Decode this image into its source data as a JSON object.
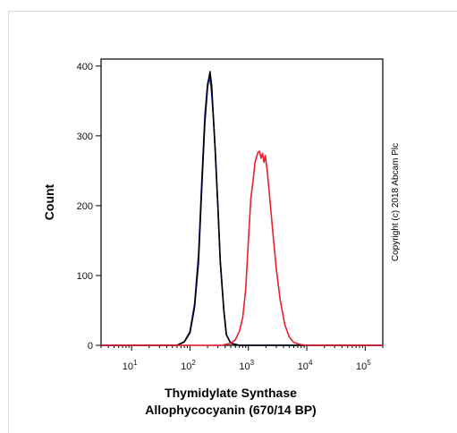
{
  "chart_data": {
    "type": "line",
    "xlabel_lines": [
      "Thymidylate Synthase",
      "Allophycocyanin (670/14 BP)"
    ],
    "ylabel": "Count",
    "xscale": "log",
    "xlim": [
      3,
      200000
    ],
    "ylim": [
      0,
      410
    ],
    "x_ticks": [
      {
        "value": 10,
        "base": "10",
        "exp": "1"
      },
      {
        "value": 100,
        "base": "10",
        "exp": "2"
      },
      {
        "value": 1000,
        "base": "10",
        "exp": "3"
      },
      {
        "value": 10000,
        "base": "10",
        "exp": "4"
      },
      {
        "value": 100000,
        "base": "10",
        "exp": "5"
      }
    ],
    "y_ticks": [
      0,
      100,
      200,
      300,
      400
    ],
    "grid": false,
    "annotation": "Copyright (c) 2018 Abcam Plc",
    "series": [
      {
        "color": "#1f2fb8",
        "x": [
          3,
          60,
          80,
          100,
          120,
          140,
          160,
          180,
          200,
          215,
          230,
          250,
          270,
          300,
          330,
          380,
          420,
          500,
          700,
          200000
        ],
        "y": [
          0,
          0,
          5,
          20,
          60,
          130,
          240,
          330,
          375,
          385,
          370,
          330,
          280,
          200,
          120,
          50,
          15,
          3,
          0,
          0
        ]
      },
      {
        "color": "#000000",
        "x": [
          3,
          60,
          80,
          100,
          120,
          140,
          160,
          180,
          200,
          220,
          235,
          250,
          270,
          300,
          330,
          380,
          420,
          500,
          700,
          200000
        ],
        "y": [
          0,
          0,
          5,
          18,
          55,
          120,
          230,
          320,
          370,
          392,
          372,
          330,
          280,
          200,
          120,
          50,
          15,
          3,
          0,
          0
        ]
      },
      {
        "color": "#e8202a",
        "x": [
          3,
          350,
          500,
          600,
          700,
          800,
          900,
          1000,
          1100,
          1200,
          1300,
          1450,
          1550,
          1650,
          1750,
          1850,
          1950,
          2100,
          2300,
          2600,
          3000,
          3500,
          4200,
          5000,
          6000,
          8000,
          10000,
          200000
        ],
        "y": [
          0,
          0,
          3,
          8,
          20,
          40,
          80,
          150,
          210,
          235,
          262,
          276,
          278,
          268,
          275,
          262,
          272,
          250,
          215,
          165,
          110,
          65,
          30,
          12,
          4,
          1,
          0,
          0
        ]
      }
    ]
  }
}
